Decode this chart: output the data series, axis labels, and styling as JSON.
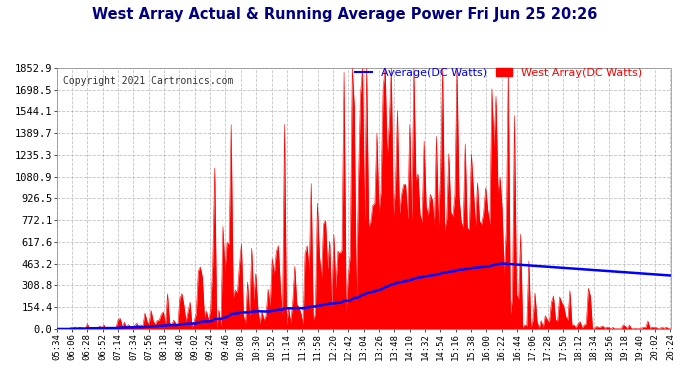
{
  "title": "West Array Actual & Running Average Power Fri Jun 25 20:26",
  "copyright": "Copyright 2021 Cartronics.com",
  "legend_avg": "Average(DC Watts)",
  "legend_west": "West Array(DC Watts)",
  "yticks": [
    0.0,
    154.4,
    308.8,
    463.2,
    617.6,
    772.1,
    926.5,
    1080.9,
    1235.3,
    1389.7,
    1544.1,
    1698.5,
    1852.9
  ],
  "ymax": 1852.9,
  "bg_color": "#ffffff",
  "grid_color": "#aaaaaa",
  "bar_color": "#ff0000",
  "avg_color": "#0000ff",
  "title_color": "#000080",
  "copyright_color": "#333333",
  "xtick_labels": [
    "05:34",
    "06:06",
    "06:28",
    "06:52",
    "07:14",
    "07:34",
    "07:56",
    "08:18",
    "08:40",
    "09:02",
    "09:24",
    "09:46",
    "10:08",
    "10:30",
    "10:52",
    "11:14",
    "11:36",
    "11:58",
    "12:20",
    "12:42",
    "13:04",
    "13:26",
    "13:48",
    "14:10",
    "14:32",
    "14:54",
    "15:16",
    "15:38",
    "16:00",
    "16:22",
    "16:44",
    "17:06",
    "17:28",
    "17:50",
    "18:12",
    "18:34",
    "18:56",
    "19:18",
    "19:40",
    "20:02",
    "20:24"
  ]
}
